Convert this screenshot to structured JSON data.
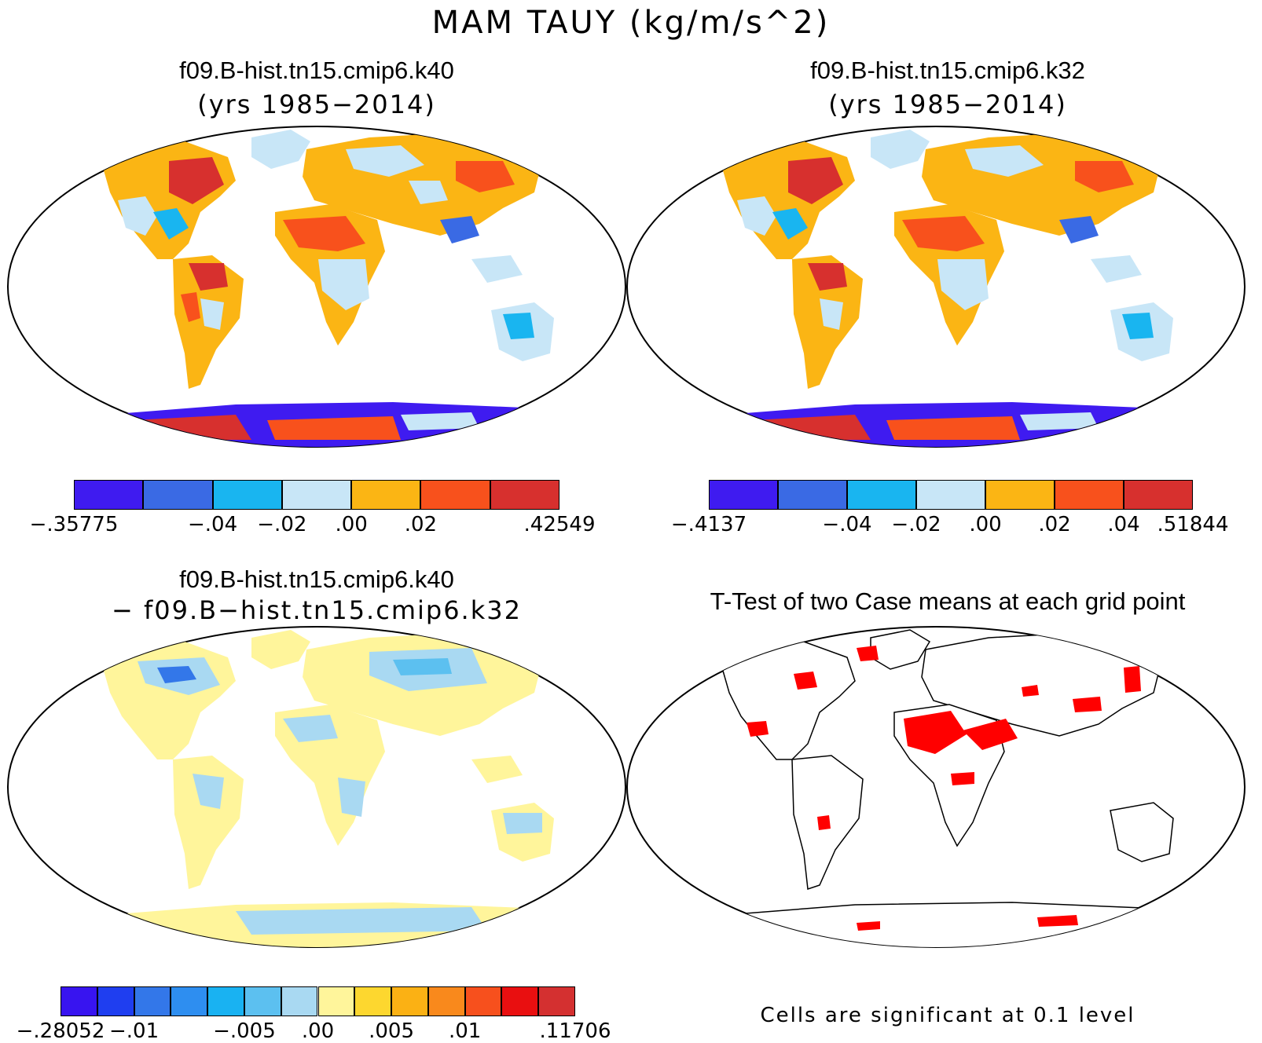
{
  "figure_title": "MAM TAUY (kg/m/s^2)",
  "panels": [
    {
      "title": "f09.B-hist.tn15.cmip6.k40",
      "subtitle": "(yrs 1985−2014)"
    },
    {
      "title": "f09.B-hist.tn15.cmip6.k32",
      "subtitle": "(yrs 1985−2014)"
    },
    {
      "title": "f09.B-hist.tn15.cmip6.k40",
      "subtitle": "− f09.B−hist.tn15.cmip6.k32"
    },
    {
      "title": "T-Test of two Case means at each grid point",
      "subtitle": ""
    }
  ],
  "colorbars": [
    {
      "colors": [
        "#3f1bf0",
        "#3a6ae4",
        "#19b5f0",
        "#c8e6f7",
        "#fbb514",
        "#f8511c",
        "#d7302e"
      ],
      "labels": [
        "−.35775",
        "−.04",
        "−.02",
        ".00",
        ".02",
        ".42549"
      ],
      "label_edges": [
        1,
        3,
        4,
        5,
        6,
        8
      ]
    },
    {
      "colors": [
        "#3f1bf0",
        "#3a6ae4",
        "#19b5f0",
        "#c8e6f7",
        "#fbb514",
        "#f8511c",
        "#d7302e"
      ],
      "labels": [
        "−.4137",
        "−.04",
        "−.02",
        ".00",
        ".02",
        ".04",
        ".51844"
      ],
      "label_edges": [
        1,
        3,
        4,
        5,
        6,
        7,
        8
      ]
    },
    {
      "colors": [
        "#3814f0",
        "#1f3ef0",
        "#3377e9",
        "#2e8ef0",
        "#19b2f2",
        "#5cc0f0",
        "#a9d9f2",
        "#fff59b",
        "#fdd72f",
        "#fbb114",
        "#f9891c",
        "#f7501d",
        "#e90f10",
        "#d43030"
      ],
      "labels": [
        "−.28052",
        "−.01",
        "−.005",
        ".00",
        ".005",
        ".01",
        ".11706"
      ],
      "label_edges": [
        1,
        3,
        6,
        8,
        10,
        12,
        15
      ]
    }
  ],
  "significance_note": "Cells are significant at 0.1 level",
  "colors": {
    "land_tp": "#fbb514",
    "land_diff": "#fff59b",
    "ocean": "#ffffff",
    "significant": "#ff0000"
  }
}
